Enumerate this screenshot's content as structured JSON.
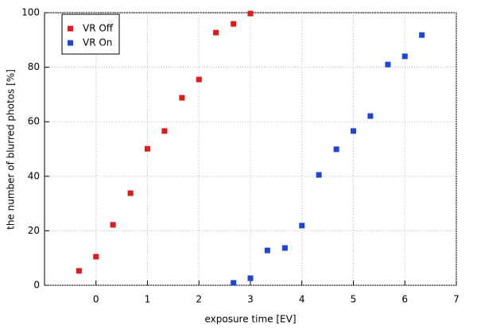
{
  "chart_data": {
    "type": "scatter",
    "x_label": "exposure time [EV]",
    "y_label": "the number of blurred photos [%]",
    "xlim": [
      -1,
      7
    ],
    "xticks": [
      0,
      1,
      2,
      3,
      4,
      5,
      6,
      7
    ],
    "ylim": [
      0,
      100
    ],
    "yticks": [
      0,
      20,
      40,
      60,
      80,
      100
    ],
    "grid": true,
    "legend": "top-left",
    "series": [
      {
        "name": "VR Off",
        "color": "#e31a1c",
        "x": [
          -0.33,
          0,
          0.33,
          0.67,
          1,
          1.33,
          1.67,
          2,
          2.33,
          2.67,
          3
        ],
        "values": [
          5.3,
          10.5,
          22.2,
          33.8,
          50.1,
          56.6,
          68.8,
          75.5,
          92.7,
          95.9,
          99.7
        ]
      },
      {
        "name": "VR On",
        "color": "#1f45d6",
        "x": [
          2.67,
          3,
          3.33,
          3.67,
          4,
          4.33,
          4.67,
          5,
          5.33,
          5.67,
          6,
          6.33
        ],
        "values": [
          0.9,
          2.6,
          12.8,
          13.7,
          21.9,
          40.5,
          49.9,
          56.6,
          62.1,
          81,
          84,
          91.8
        ]
      }
    ]
  }
}
